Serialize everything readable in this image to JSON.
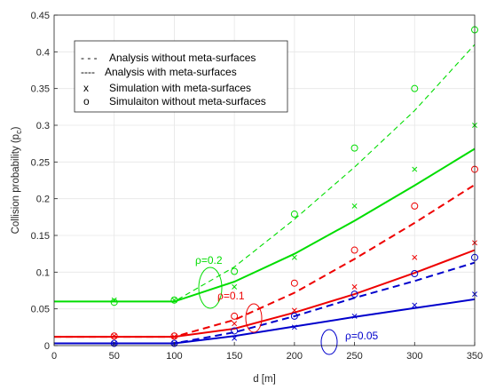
{
  "chart_data": {
    "type": "line",
    "xlabel": "d [m]",
    "ylabel": "Collision probability (p",
    "ylabel_sub": "c",
    "ylabel_close": ")",
    "xlim": [
      0,
      350
    ],
    "ylim": [
      0,
      0.45
    ],
    "x_ticks": [
      0,
      50,
      100,
      150,
      200,
      250,
      300,
      350
    ],
    "x_tick_labels": [
      "0",
      "50",
      "100",
      "150",
      "200",
      "250",
      "300",
      "350"
    ],
    "y_ticks": [
      0,
      0.05,
      0.1,
      0.15,
      0.2,
      0.25,
      0.3,
      0.35,
      0.4,
      0.45
    ],
    "y_tick_labels": [
      "0",
      "0.05",
      "0.1",
      "0.15",
      "0.2",
      "0.25",
      "0.3",
      "0.35",
      "0.4",
      "0.45"
    ],
    "grid": true,
    "legend_position": "top-left",
    "legend": [
      {
        "marker": "- - -",
        "label": "Analysis without meta-surfaces"
      },
      {
        "marker": "----",
        "label": "Analysis with meta-surfaces"
      },
      {
        "marker": "x",
        "label": "Simulation with meta-surfaces"
      },
      {
        "marker": "o",
        "label": "Simulaiton without meta-surfaces"
      }
    ],
    "colors": {
      "rho_0_2": "#00dd00",
      "rho_0_1": "#ee0000",
      "rho_0_05": "#0000cc"
    },
    "annotations": [
      {
        "label": "ρ=0.2",
        "x": 132,
        "y": 0.075,
        "color": "#00dd00"
      },
      {
        "label": "ρ=0.1",
        "x": 168,
        "y": 0.058,
        "color": "#ee0000"
      },
      {
        "label": "ρ=0.05",
        "x": 233,
        "y": 0.03,
        "color": "#0000cc"
      }
    ],
    "series": [
      {
        "style": "dashed-thin",
        "color": "#00dd00",
        "x": [
          0,
          50,
          100,
          150,
          200,
          250,
          300,
          350
        ],
        "y": [
          0.06,
          0.06,
          0.06,
          0.107,
          0.172,
          0.243,
          0.32,
          0.41
        ]
      },
      {
        "style": "solid",
        "color": "#00dd00",
        "x": [
          0,
          50,
          100,
          150,
          200,
          250,
          300,
          350
        ],
        "y": [
          0.06,
          0.06,
          0.06,
          0.087,
          0.125,
          0.17,
          0.218,
          0.268
        ]
      },
      {
        "style": "dashed",
        "color": "#ee0000",
        "x": [
          0,
          50,
          100,
          150,
          200,
          250,
          300,
          350
        ],
        "y": [
          0.012,
          0.012,
          0.012,
          0.035,
          0.072,
          0.118,
          0.167,
          0.219
        ]
      },
      {
        "style": "solid",
        "color": "#ee0000",
        "x": [
          0,
          50,
          100,
          150,
          200,
          250,
          300,
          350
        ],
        "y": [
          0.012,
          0.012,
          0.012,
          0.023,
          0.045,
          0.07,
          0.099,
          0.13
        ]
      },
      {
        "style": "dashed",
        "color": "#0000cc",
        "x": [
          0,
          50,
          100,
          150,
          200,
          250,
          300,
          350
        ],
        "y": [
          0.003,
          0.003,
          0.003,
          0.018,
          0.04,
          0.065,
          0.088,
          0.113
        ]
      },
      {
        "style": "solid",
        "color": "#0000cc",
        "x": [
          0,
          50,
          100,
          150,
          200,
          250,
          300,
          350
        ],
        "y": [
          0.003,
          0.003,
          0.003,
          0.013,
          0.026,
          0.039,
          0.051,
          0.063
        ]
      },
      {
        "style": "marker-o",
        "color": "#00dd00",
        "x": [
          50,
          100,
          150,
          200,
          250,
          300,
          350
        ],
        "y": [
          0.059,
          0.062,
          0.101,
          0.179,
          0.269,
          0.35,
          0.43
        ]
      },
      {
        "style": "marker-x",
        "color": "#00dd00",
        "x": [
          50,
          100,
          150,
          200,
          250,
          300,
          350
        ],
        "y": [
          0.062,
          0.062,
          0.08,
          0.12,
          0.19,
          0.24,
          0.3
        ]
      },
      {
        "style": "marker-o",
        "color": "#ee0000",
        "x": [
          50,
          100,
          150,
          200,
          250,
          300,
          350
        ],
        "y": [
          0.013,
          0.013,
          0.04,
          0.085,
          0.13,
          0.19,
          0.24
        ]
      },
      {
        "style": "marker-x",
        "color": "#ee0000",
        "x": [
          50,
          100,
          150,
          200,
          250,
          300,
          350
        ],
        "y": [
          0.013,
          0.012,
          0.03,
          0.048,
          0.08,
          0.12,
          0.14
        ]
      },
      {
        "style": "marker-o",
        "color": "#0000cc",
        "x": [
          50,
          100,
          150,
          200,
          250,
          300,
          350
        ],
        "y": [
          0.003,
          0.003,
          0.02,
          0.04,
          0.07,
          0.098,
          0.12
        ]
      },
      {
        "style": "marker-x",
        "color": "#0000cc",
        "x": [
          50,
          100,
          150,
          200,
          250,
          300,
          350
        ],
        "y": [
          0.003,
          0.003,
          0.01,
          0.025,
          0.04,
          0.055,
          0.07
        ]
      }
    ]
  }
}
